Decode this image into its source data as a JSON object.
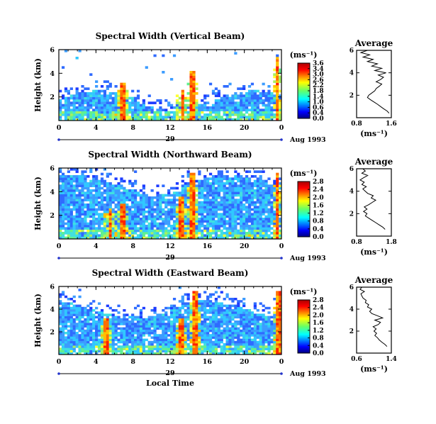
{
  "chart_data": [
    {
      "type": "heatmap",
      "title": "Spectral Width (Vertical Beam)",
      "ylabel": "Height (km)",
      "xlim": [
        0,
        24
      ],
      "ylim": [
        0,
        6
      ],
      "x_ticks": [
        "0",
        "4",
        "8",
        "12",
        "16",
        "20",
        "0"
      ],
      "y_ticks": [
        "2",
        "4",
        "6"
      ],
      "day_label": "29",
      "date_label": "Aug 1993",
      "colorbar": {
        "label": "(ms⁻¹)",
        "ticks": [
          "3.6",
          "3.4",
          "3.0",
          "2.6",
          "2.2",
          "1.8",
          "1.4",
          "1.0",
          "0.6",
          "0.4",
          "0.0"
        ],
        "range": [
          0,
          3.6
        ]
      },
      "profile": {
        "title": "Average",
        "xlabel": "(ms⁻¹)",
        "x_ticks": [
          "0.8",
          "1.6"
        ],
        "xlim": [
          0.8,
          1.6
        ],
        "y_ticks": [
          "2",
          "4",
          "6"
        ],
        "points": [
          [
            1.55,
            0.4
          ],
          [
            1.5,
            0.6
          ],
          [
            1.42,
            0.8
          ],
          [
            1.35,
            1.0
          ],
          [
            1.28,
            1.2
          ],
          [
            1.2,
            1.4
          ],
          [
            1.12,
            1.6
          ],
          [
            1.05,
            1.8
          ],
          [
            1.08,
            2.0
          ],
          [
            1.15,
            2.2
          ],
          [
            1.22,
            2.4
          ],
          [
            1.25,
            2.6
          ],
          [
            1.32,
            2.8
          ],
          [
            1.38,
            3.0
          ],
          [
            1.25,
            3.2
          ],
          [
            1.35,
            3.4
          ],
          [
            1.42,
            3.6
          ],
          [
            1.3,
            3.8
          ],
          [
            1.48,
            4.0
          ],
          [
            1.22,
            4.2
          ],
          [
            1.38,
            4.4
          ],
          [
            1.15,
            4.6
          ],
          [
            1.28,
            4.8
          ],
          [
            1.05,
            5.0
          ],
          [
            1.18,
            5.2
          ],
          [
            0.95,
            5.4
          ],
          [
            1.1,
            5.6
          ],
          [
            0.9,
            5.8
          ],
          [
            1.05,
            6.0
          ]
        ]
      }
    },
    {
      "type": "heatmap",
      "title": "Spectral Width (Northward Beam)",
      "ylabel": "Height (km)",
      "xlim": [
        0,
        24
      ],
      "ylim": [
        0,
        6
      ],
      "x_ticks": [
        "0",
        "4",
        "8",
        "12",
        "16",
        "20",
        "0"
      ],
      "y_ticks": [
        "2",
        "4",
        "6"
      ],
      "day_label": "29",
      "date_label": "Aug 1993",
      "colorbar": {
        "label": "(ms⁻¹)",
        "ticks": [
          "2.8",
          "2.4",
          "2.0",
          "1.6",
          "1.2",
          "0.8",
          "0.4",
          "0.0"
        ],
        "range": [
          0,
          2.8
        ]
      },
      "profile": {
        "title": "Average",
        "xlabel": "(ms⁻¹)",
        "x_ticks": [
          "0.8",
          "1.8"
        ],
        "xlim": [
          0.8,
          1.8
        ],
        "y_ticks": [
          "2",
          "4",
          "6"
        ],
        "points": [
          [
            1.62,
            0.6
          ],
          [
            1.55,
            0.8
          ],
          [
            1.45,
            1.0
          ],
          [
            1.35,
            1.2
          ],
          [
            1.25,
            1.4
          ],
          [
            1.15,
            1.6
          ],
          [
            1.05,
            1.8
          ],
          [
            1.1,
            2.0
          ],
          [
            1.0,
            2.2
          ],
          [
            1.1,
            2.4
          ],
          [
            1.02,
            2.6
          ],
          [
            1.15,
            2.8
          ],
          [
            1.25,
            3.0
          ],
          [
            1.35,
            3.2
          ],
          [
            1.22,
            3.4
          ],
          [
            1.28,
            3.6
          ],
          [
            1.12,
            3.8
          ],
          [
            1.05,
            4.0
          ],
          [
            0.98,
            4.2
          ],
          [
            1.08,
            4.4
          ],
          [
            0.95,
            4.6
          ],
          [
            1.02,
            4.8
          ],
          [
            0.9,
            5.0
          ],
          [
            1.0,
            5.2
          ],
          [
            1.12,
            5.4
          ],
          [
            0.95,
            5.6
          ],
          [
            1.05,
            5.8
          ],
          [
            0.98,
            6.0
          ]
        ]
      }
    },
    {
      "type": "heatmap",
      "title": "Spectral Width (Eastward Beam)",
      "ylabel": "Height (km)",
      "xlabel": "Local Time",
      "xlim": [
        0,
        24
      ],
      "ylim": [
        0,
        6
      ],
      "x_ticks": [
        "0",
        "4",
        "8",
        "12",
        "16",
        "20",
        "0"
      ],
      "y_ticks": [
        "2",
        "4",
        "6"
      ],
      "day_label": "29",
      "date_label": "Aug 1993",
      "colorbar": {
        "label": "(ms⁻¹)",
        "ticks": [
          "2.8",
          "2.4",
          "2.0",
          "1.6",
          "1.2",
          "0.8",
          "0.4",
          "0.0"
        ],
        "range": [
          0,
          2.8
        ]
      },
      "profile": {
        "title": "Average",
        "xlabel": "(ms⁻¹)",
        "x_ticks": [
          "0.6",
          "1.4"
        ],
        "xlim": [
          0.6,
          1.4
        ],
        "y_ticks": [
          "2",
          "4",
          "6"
        ],
        "points": [
          [
            1.3,
            0.6
          ],
          [
            1.25,
            0.8
          ],
          [
            1.18,
            1.0
          ],
          [
            1.12,
            1.2
          ],
          [
            1.08,
            1.4
          ],
          [
            1.02,
            1.6
          ],
          [
            1.06,
            1.8
          ],
          [
            1.0,
            2.0
          ],
          [
            1.05,
            2.2
          ],
          [
            0.98,
            2.4
          ],
          [
            1.1,
            2.6
          ],
          [
            1.15,
            2.8
          ],
          [
            1.02,
            3.0
          ],
          [
            1.2,
            3.2
          ],
          [
            1.08,
            3.4
          ],
          [
            0.95,
            3.6
          ],
          [
            0.9,
            3.8
          ],
          [
            0.95,
            4.0
          ],
          [
            0.85,
            4.2
          ],
          [
            0.88,
            4.4
          ],
          [
            0.8,
            4.6
          ],
          [
            0.82,
            4.8
          ],
          [
            0.75,
            5.0
          ],
          [
            0.72,
            5.2
          ],
          [
            0.7,
            5.4
          ],
          [
            0.78,
            5.6
          ],
          [
            0.68,
            5.8
          ],
          [
            0.72,
            6.0
          ]
        ]
      }
    }
  ]
}
